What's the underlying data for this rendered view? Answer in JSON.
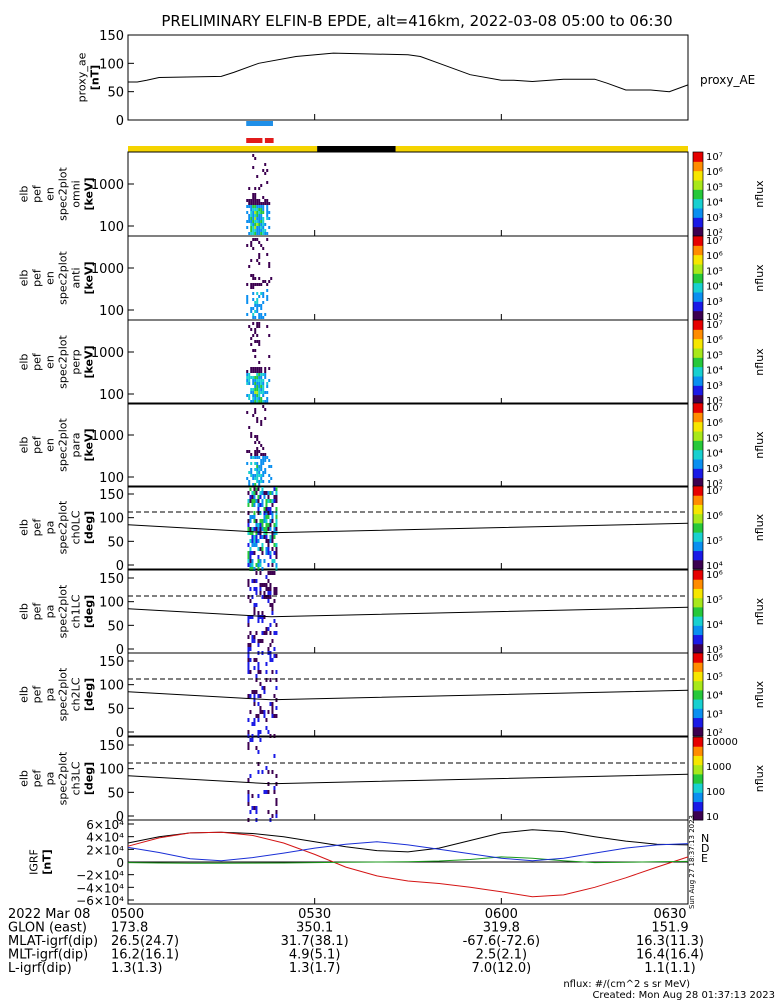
{
  "title": "PRELIMINARY ELFIN-B EPDE, alt=416km, 2022-03-08 05:00 to 06:30",
  "chart_data": [
    {
      "type": "line",
      "name": "proxy_ae",
      "ylabel_lines": [
        "proxy_ae",
        "[nT]"
      ],
      "legend": "proxy_AE",
      "ylim": [
        0,
        150
      ],
      "yticks": [
        "0",
        "50",
        "100",
        "150"
      ],
      "x_minutes": [
        0,
        1.5,
        3,
        5,
        15,
        17,
        21,
        27,
        33,
        45,
        47,
        50,
        55,
        60,
        62,
        65,
        70,
        75,
        77,
        80,
        84,
        87,
        90
      ],
      "values": [
        67,
        67,
        70,
        75,
        77,
        84,
        100,
        112,
        118,
        115,
        112,
        100,
        80,
        70,
        70,
        68,
        72,
        72,
        65,
        53,
        53,
        50,
        62
      ]
    },
    {
      "type": "table",
      "name": "status_bars",
      "rows": [
        {
          "color": "#1f8fe8",
          "segments": [
            [
              19.0,
              23.3
            ]
          ]
        },
        {
          "color": "#e11b1b",
          "segments": [
            [
              19.0,
              21.6
            ],
            [
              22.0,
              23.4
            ]
          ]
        },
        {
          "color": "#f5d400",
          "segments": [
            [
              0,
              30.4
            ],
            [
              43.0,
              90
            ]
          ]
        },
        {
          "color": "#000000",
          "segments": [
            [
              30.4,
              43.0
            ]
          ]
        }
      ]
    },
    {
      "type": "heatmap",
      "name": "energy_spectrograms",
      "panels": [
        {
          "label": [
            "elb",
            "pef",
            "en",
            "spec2plot",
            "omni",
            "[keV]"
          ],
          "yticks": [
            "100",
            "1000"
          ],
          "colorbar_ticks": [
            "10^2",
            "10^3",
            "10^4",
            "10^5",
            "10^6",
            "10^7"
          ],
          "colorbar_label": "nflux",
          "time_range_minutes": [
            19.0,
            24.0
          ]
        },
        {
          "label": [
            "elb",
            "pef",
            "en",
            "spec2plot",
            "anti",
            "[keV]"
          ],
          "yticks": [
            "100",
            "1000"
          ],
          "colorbar_ticks": [
            "10^2",
            "10^3",
            "10^4",
            "10^5",
            "10^6",
            "10^7"
          ],
          "colorbar_label": "nflux",
          "time_range_minutes": [
            19.0,
            24.0
          ]
        },
        {
          "label": [
            "elb",
            "pef",
            "en",
            "spec2plot",
            "perp",
            "[keV]"
          ],
          "yticks": [
            "100",
            "1000"
          ],
          "colorbar_ticks": [
            "10^2",
            "10^3",
            "10^4",
            "10^5",
            "10^6",
            "10^7"
          ],
          "colorbar_label": "nflux",
          "time_range_minutes": [
            19.0,
            24.0
          ]
        },
        {
          "label": [
            "elb",
            "pef",
            "en",
            "spec2plot",
            "para",
            "[keV]"
          ],
          "yticks": [
            "100",
            "1000"
          ],
          "colorbar_ticks": [
            "10^2",
            "10^3",
            "10^4",
            "10^5",
            "10^6",
            "10^7"
          ],
          "colorbar_label": "nflux",
          "time_range_minutes": [
            19.0,
            24.0
          ]
        }
      ]
    },
    {
      "type": "heatmap",
      "name": "pitch_angle_spectrograms",
      "panels": [
        {
          "label": [
            "elb",
            "pef",
            "pa",
            "spec2plot",
            "ch0LC",
            "[deg]"
          ],
          "yticks": [
            "0",
            "50",
            "100",
            "150"
          ],
          "colorbar_ticks": [
            "10^4",
            "10^5",
            "10^6",
            "10^7"
          ],
          "colorbar_label": "nflux"
        },
        {
          "label": [
            "elb",
            "pef",
            "pa",
            "spec2plot",
            "ch1LC",
            "[deg]"
          ],
          "yticks": [
            "0",
            "50",
            "100",
            "150"
          ],
          "colorbar_ticks": [
            "10^3",
            "10^4",
            "10^5",
            "10^6"
          ],
          "colorbar_label": "nflux"
        },
        {
          "label": [
            "elb",
            "pef",
            "pa",
            "spec2plot",
            "ch2LC",
            "[deg]"
          ],
          "yticks": [
            "0",
            "50",
            "100",
            "150"
          ],
          "colorbar_ticks": [
            "10^2",
            "10^3",
            "10^4",
            "10^5",
            "10^6"
          ],
          "colorbar_label": "nflux"
        },
        {
          "label": [
            "elb",
            "pef",
            "pa",
            "spec2plot",
            "ch3LC",
            "[deg]"
          ],
          "yticks": [
            "0",
            "50",
            "100",
            "150"
          ],
          "colorbar_ticks": [
            "10",
            "100",
            "1000",
            "10000"
          ],
          "colorbar_label": "nflux"
        }
      ],
      "loss_cone_deg": [
        [
          0,
          85
        ],
        [
          23,
          68
        ],
        [
          90,
          88
        ]
      ],
      "anti_loss_cone_deg": 112
    },
    {
      "type": "line",
      "name": "IGRF",
      "ylabel_lines": [
        "IGRF",
        "[nT]"
      ],
      "ylim": [
        -60000,
        60000
      ],
      "yticks": [
        "6×10⁴",
        "4×10⁴",
        "2×10⁴",
        "0",
        "−2×10⁴",
        "−4×10⁴",
        "−6×10⁴"
      ],
      "ytick_values": [
        60000,
        40000,
        20000,
        0,
        -20000,
        -40000,
        -60000
      ],
      "x_minutes": [
        0,
        5,
        10,
        15,
        20,
        25,
        30,
        35,
        40,
        45,
        50,
        55,
        60,
        65,
        70,
        75,
        80,
        85,
        90
      ],
      "series": [
        {
          "name": "N",
          "color": "#000000",
          "values": [
            30000,
            40000,
            46000,
            47000,
            45000,
            40000,
            32000,
            24000,
            18000,
            16000,
            22000,
            34000,
            46000,
            51000,
            48000,
            40000,
            33000,
            28000,
            27000
          ]
        },
        {
          "name": "D",
          "color": "#d41414",
          "values": [
            25000,
            38000,
            46000,
            47000,
            42000,
            30000,
            12000,
            -8000,
            -22000,
            -30000,
            -34000,
            -40000,
            -47000,
            -55000,
            -52000,
            -40000,
            -25000,
            -8000,
            8000
          ]
        },
        {
          "name": "E",
          "color": "#1b9a1b",
          "values": [
            -1000,
            -1500,
            -2000,
            -2000,
            -1800,
            -1500,
            -1000,
            -500,
            0,
            500,
            1500,
            4000,
            8000,
            6000,
            2000,
            -1000,
            -500,
            500,
            1000
          ]
        },
        {
          "name": "",
          "color": "#1a2fd6",
          "values": [
            23000,
            15000,
            5000,
            2000,
            7000,
            14000,
            22000,
            28000,
            32000,
            27000,
            20000,
            13000,
            6000,
            2000,
            6000,
            14000,
            22000,
            27000,
            29000
          ]
        }
      ]
    }
  ],
  "axis": {
    "x_range_minutes": [
      0,
      90
    ],
    "x_ticks_minutes": [
      0,
      30,
      60,
      90
    ],
    "footer_rows": [
      {
        "label": "2022 Mar 08",
        "values": [
          "0500",
          "0530",
          "0600",
          "0630"
        ]
      },
      {
        "label": "GLON (east)",
        "values": [
          "173.8",
          "350.1",
          "319.8",
          "151.9"
        ]
      },
      {
        "label": "MLAT-igrf(dip)",
        "values": [
          "26.5(24.7)",
          "31.7(38.1)",
          "-67.6(-72.6)",
          "16.3(11.3)"
        ]
      },
      {
        "label": "MLT-igrf(dip)",
        "values": [
          "16.2(16.1)",
          "4.9(5.1)",
          "2.5(2.1)",
          "16.4(16.4)"
        ]
      },
      {
        "label": "L-igrf(dip)",
        "values": [
          "1.3(1.3)",
          "1.3(1.7)",
          "7.0(12.0)",
          "1.1(1.1)"
        ]
      }
    ]
  },
  "footnotes": {
    "units": "nflux: #/(cm^2 s sr MeV)",
    "created": "Created: Mon Aug 28 01:37:13 2023",
    "side_stamp": "Sun Aug 27 18:37:13 2023"
  },
  "colors": {
    "spectrogram_palette": [
      "#3c0050",
      "#1a1ae6",
      "#0a8ff0",
      "#18d0d0",
      "#26c83a",
      "#a8e81a",
      "#f6e600",
      "#ff8c00",
      "#e60000"
    ]
  }
}
